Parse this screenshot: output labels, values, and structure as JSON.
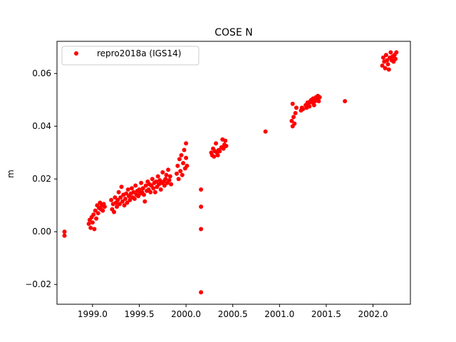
{
  "chart_data": {
    "type": "scatter",
    "title": "COSE N",
    "xlabel": "",
    "ylabel": "m",
    "xlim": [
      1998.62,
      2002.4
    ],
    "ylim": [
      -0.0275,
      0.0722
    ],
    "x_ticks": [
      1999.0,
      1999.5,
      2000.0,
      2000.5,
      2001.0,
      2001.5,
      2002.0
    ],
    "x_tick_labels": [
      "1999.0",
      "1999.5",
      "2000.0",
      "2000.5",
      "2001.0",
      "2001.5",
      "2002.0"
    ],
    "y_ticks": [
      -0.02,
      0.0,
      0.02,
      0.04,
      0.06
    ],
    "y_tick_labels": [
      "−0.02",
      "0.00",
      "0.02",
      "0.04",
      "0.06"
    ],
    "grid": false,
    "legend": {
      "placement": "top-left",
      "entries": [
        "repro2018a (IGS14)"
      ]
    },
    "series": [
      {
        "name": "repro2018a (IGS14)",
        "color": "#ff0000",
        "marker": "circle",
        "points": [
          [
            1998.7,
            0.0
          ],
          [
            1998.7,
            -0.0015
          ],
          [
            1998.96,
            0.003
          ],
          [
            1998.97,
            0.0045
          ],
          [
            1998.98,
            0.0015
          ],
          [
            1998.99,
            0.0055
          ],
          [
            1999.0,
            0.0035
          ],
          [
            1999.01,
            0.0065
          ],
          [
            1999.02,
            0.001
          ],
          [
            1999.03,
            0.008
          ],
          [
            1999.04,
            0.005
          ],
          [
            1999.05,
            0.01
          ],
          [
            1999.06,
            0.007
          ],
          [
            1999.07,
            0.009
          ],
          [
            1999.08,
            0.011
          ],
          [
            1999.09,
            0.0085
          ],
          [
            1999.1,
            0.01
          ],
          [
            1999.11,
            0.008
          ],
          [
            1999.12,
            0.0105
          ],
          [
            1999.13,
            0.0095
          ],
          [
            1999.2,
            0.012
          ],
          [
            1999.21,
            0.0085
          ],
          [
            1999.22,
            0.0105
          ],
          [
            1999.23,
            0.0075
          ],
          [
            1999.24,
            0.013
          ],
          [
            1999.25,
            0.011
          ],
          [
            1999.26,
            0.0095
          ],
          [
            1999.27,
            0.012
          ],
          [
            1999.28,
            0.015
          ],
          [
            1999.29,
            0.0105
          ],
          [
            1999.3,
            0.013
          ],
          [
            1999.31,
            0.017
          ],
          [
            1999.32,
            0.0115
          ],
          [
            1999.33,
            0.014
          ],
          [
            1999.34,
            0.01
          ],
          [
            1999.35,
            0.0125
          ],
          [
            1999.36,
            0.0145
          ],
          [
            1999.37,
            0.011
          ],
          [
            1999.38,
            0.016
          ],
          [
            1999.39,
            0.0135
          ],
          [
            1999.4,
            0.012
          ],
          [
            1999.41,
            0.0145
          ],
          [
            1999.42,
            0.0165
          ],
          [
            1999.43,
            0.013
          ],
          [
            1999.44,
            0.015
          ],
          [
            1999.45,
            0.0125
          ],
          [
            1999.46,
            0.0175
          ],
          [
            1999.47,
            0.014
          ],
          [
            1999.48,
            0.0155
          ],
          [
            1999.49,
            0.0135
          ],
          [
            1999.5,
            0.016
          ],
          [
            1999.51,
            0.0145
          ],
          [
            1999.52,
            0.0185
          ],
          [
            1999.53,
            0.015
          ],
          [
            1999.54,
            0.0165
          ],
          [
            1999.55,
            0.014
          ],
          [
            1999.56,
            0.0115
          ],
          [
            1999.57,
            0.0175
          ],
          [
            1999.58,
            0.0155
          ],
          [
            1999.59,
            0.019
          ],
          [
            1999.6,
            0.016
          ],
          [
            1999.61,
            0.018
          ],
          [
            1999.62,
            0.015
          ],
          [
            1999.63,
            0.0175
          ],
          [
            1999.64,
            0.02
          ],
          [
            1999.65,
            0.0165
          ],
          [
            1999.66,
            0.0185
          ],
          [
            1999.67,
            0.015
          ],
          [
            1999.68,
            0.019
          ],
          [
            1999.69,
            0.017
          ],
          [
            1999.7,
            0.021
          ],
          [
            1999.71,
            0.018
          ],
          [
            1999.72,
            0.0195
          ],
          [
            1999.73,
            0.016
          ],
          [
            1999.74,
            0.0185
          ],
          [
            1999.75,
            0.0225
          ],
          [
            1999.76,
            0.019
          ],
          [
            1999.77,
            0.0175
          ],
          [
            1999.78,
            0.02
          ],
          [
            1999.79,
            0.0215
          ],
          [
            1999.8,
            0.0185
          ],
          [
            1999.81,
            0.0235
          ],
          [
            1999.82,
            0.0195
          ],
          [
            1999.83,
            0.021
          ],
          [
            1999.84,
            0.018
          ],
          [
            1999.9,
            0.022
          ],
          [
            1999.91,
            0.025
          ],
          [
            1999.92,
            0.02
          ],
          [
            1999.93,
            0.0275
          ],
          [
            1999.94,
            0.023
          ],
          [
            1999.95,
            0.029
          ],
          [
            1999.96,
            0.0215
          ],
          [
            1999.97,
            0.026
          ],
          [
            1999.98,
            0.031
          ],
          [
            1999.99,
            0.024
          ],
          [
            2000.0,
            0.028
          ],
          [
            2000.0,
            0.0335
          ],
          [
            2000.01,
            0.025
          ],
          [
            2000.16,
            0.016
          ],
          [
            2000.16,
            0.0095
          ],
          [
            2000.16,
            0.001
          ],
          [
            2000.16,
            -0.023
          ],
          [
            2000.27,
            0.03
          ],
          [
            2000.28,
            0.029
          ],
          [
            2000.29,
            0.0315
          ],
          [
            2000.3,
            0.0285
          ],
          [
            2000.31,
            0.0305
          ],
          [
            2000.32,
            0.0335
          ],
          [
            2000.33,
            0.03
          ],
          [
            2000.34,
            0.029
          ],
          [
            2000.35,
            0.031
          ],
          [
            2000.36,
            0.0305
          ],
          [
            2000.38,
            0.032
          ],
          [
            2000.39,
            0.035
          ],
          [
            2000.4,
            0.0315
          ],
          [
            2000.41,
            0.033
          ],
          [
            2000.42,
            0.0345
          ],
          [
            2000.43,
            0.0325
          ],
          [
            2000.85,
            0.038
          ],
          [
            2001.13,
            0.042
          ],
          [
            2001.14,
            0.04
          ],
          [
            2001.14,
            0.0485
          ],
          [
            2001.15,
            0.0435
          ],
          [
            2001.16,
            0.041
          ],
          [
            2001.17,
            0.045
          ],
          [
            2001.18,
            0.047
          ],
          [
            2001.23,
            0.046
          ],
          [
            2001.24,
            0.047
          ],
          [
            2001.25,
            0.0465
          ],
          [
            2001.28,
            0.048
          ],
          [
            2001.29,
            0.047
          ],
          [
            2001.3,
            0.049
          ],
          [
            2001.31,
            0.0485
          ],
          [
            2001.32,
            0.0475
          ],
          [
            2001.33,
            0.0495
          ],
          [
            2001.34,
            0.05
          ],
          [
            2001.35,
            0.049
          ],
          [
            2001.36,
            0.0505
          ],
          [
            2001.37,
            0.048
          ],
          [
            2001.38,
            0.0495
          ],
          [
            2001.39,
            0.051
          ],
          [
            2001.4,
            0.05
          ],
          [
            2001.41,
            0.0515
          ],
          [
            2001.42,
            0.0495
          ],
          [
            2001.43,
            0.051
          ],
          [
            2001.7,
            0.0495
          ],
          [
            2002.1,
            0.063
          ],
          [
            2002.11,
            0.066
          ],
          [
            2002.12,
            0.0645
          ],
          [
            2002.13,
            0.062
          ],
          [
            2002.14,
            0.067
          ],
          [
            2002.15,
            0.065
          ],
          [
            2002.16,
            0.0635
          ],
          [
            2002.17,
            0.0615
          ],
          [
            2002.18,
            0.066
          ],
          [
            2002.19,
            0.068
          ],
          [
            2002.2,
            0.065
          ],
          [
            2002.21,
            0.0665
          ],
          [
            2002.22,
            0.0645
          ],
          [
            2002.23,
            0.067
          ],
          [
            2002.24,
            0.0655
          ],
          [
            2002.25,
            0.068
          ]
        ]
      }
    ]
  }
}
